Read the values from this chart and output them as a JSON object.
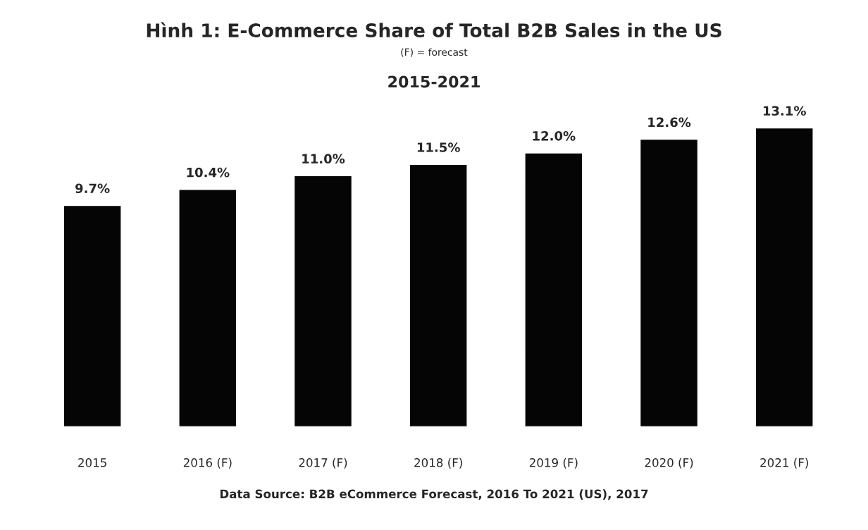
{
  "chart_data": {
    "type": "bar",
    "title": "Hình 1: E-Commerce Share of Total B2B Sales in the US",
    "subtitle": "(F) = forecast",
    "annotations": [
      "2015-2021",
      "Data Source: B2B eCommerce Forecast, 2016 To 2021 (US), 2017"
    ],
    "categories": [
      "2015",
      "2016 (F)",
      "2017 (F)",
      "2018 (F)",
      "2019 (F)",
      "2020 (F)",
      "2021 (F)"
    ],
    "values": [
      9.7,
      10.4,
      11.0,
      11.5,
      12.0,
      12.6,
      13.1
    ],
    "value_labels": [
      "9.7%",
      "10.4%",
      "11.0%",
      "11.5%",
      "12.0%",
      "12.6%",
      "13.1%"
    ],
    "color": "#050505",
    "grid": false,
    "legend": false
  }
}
